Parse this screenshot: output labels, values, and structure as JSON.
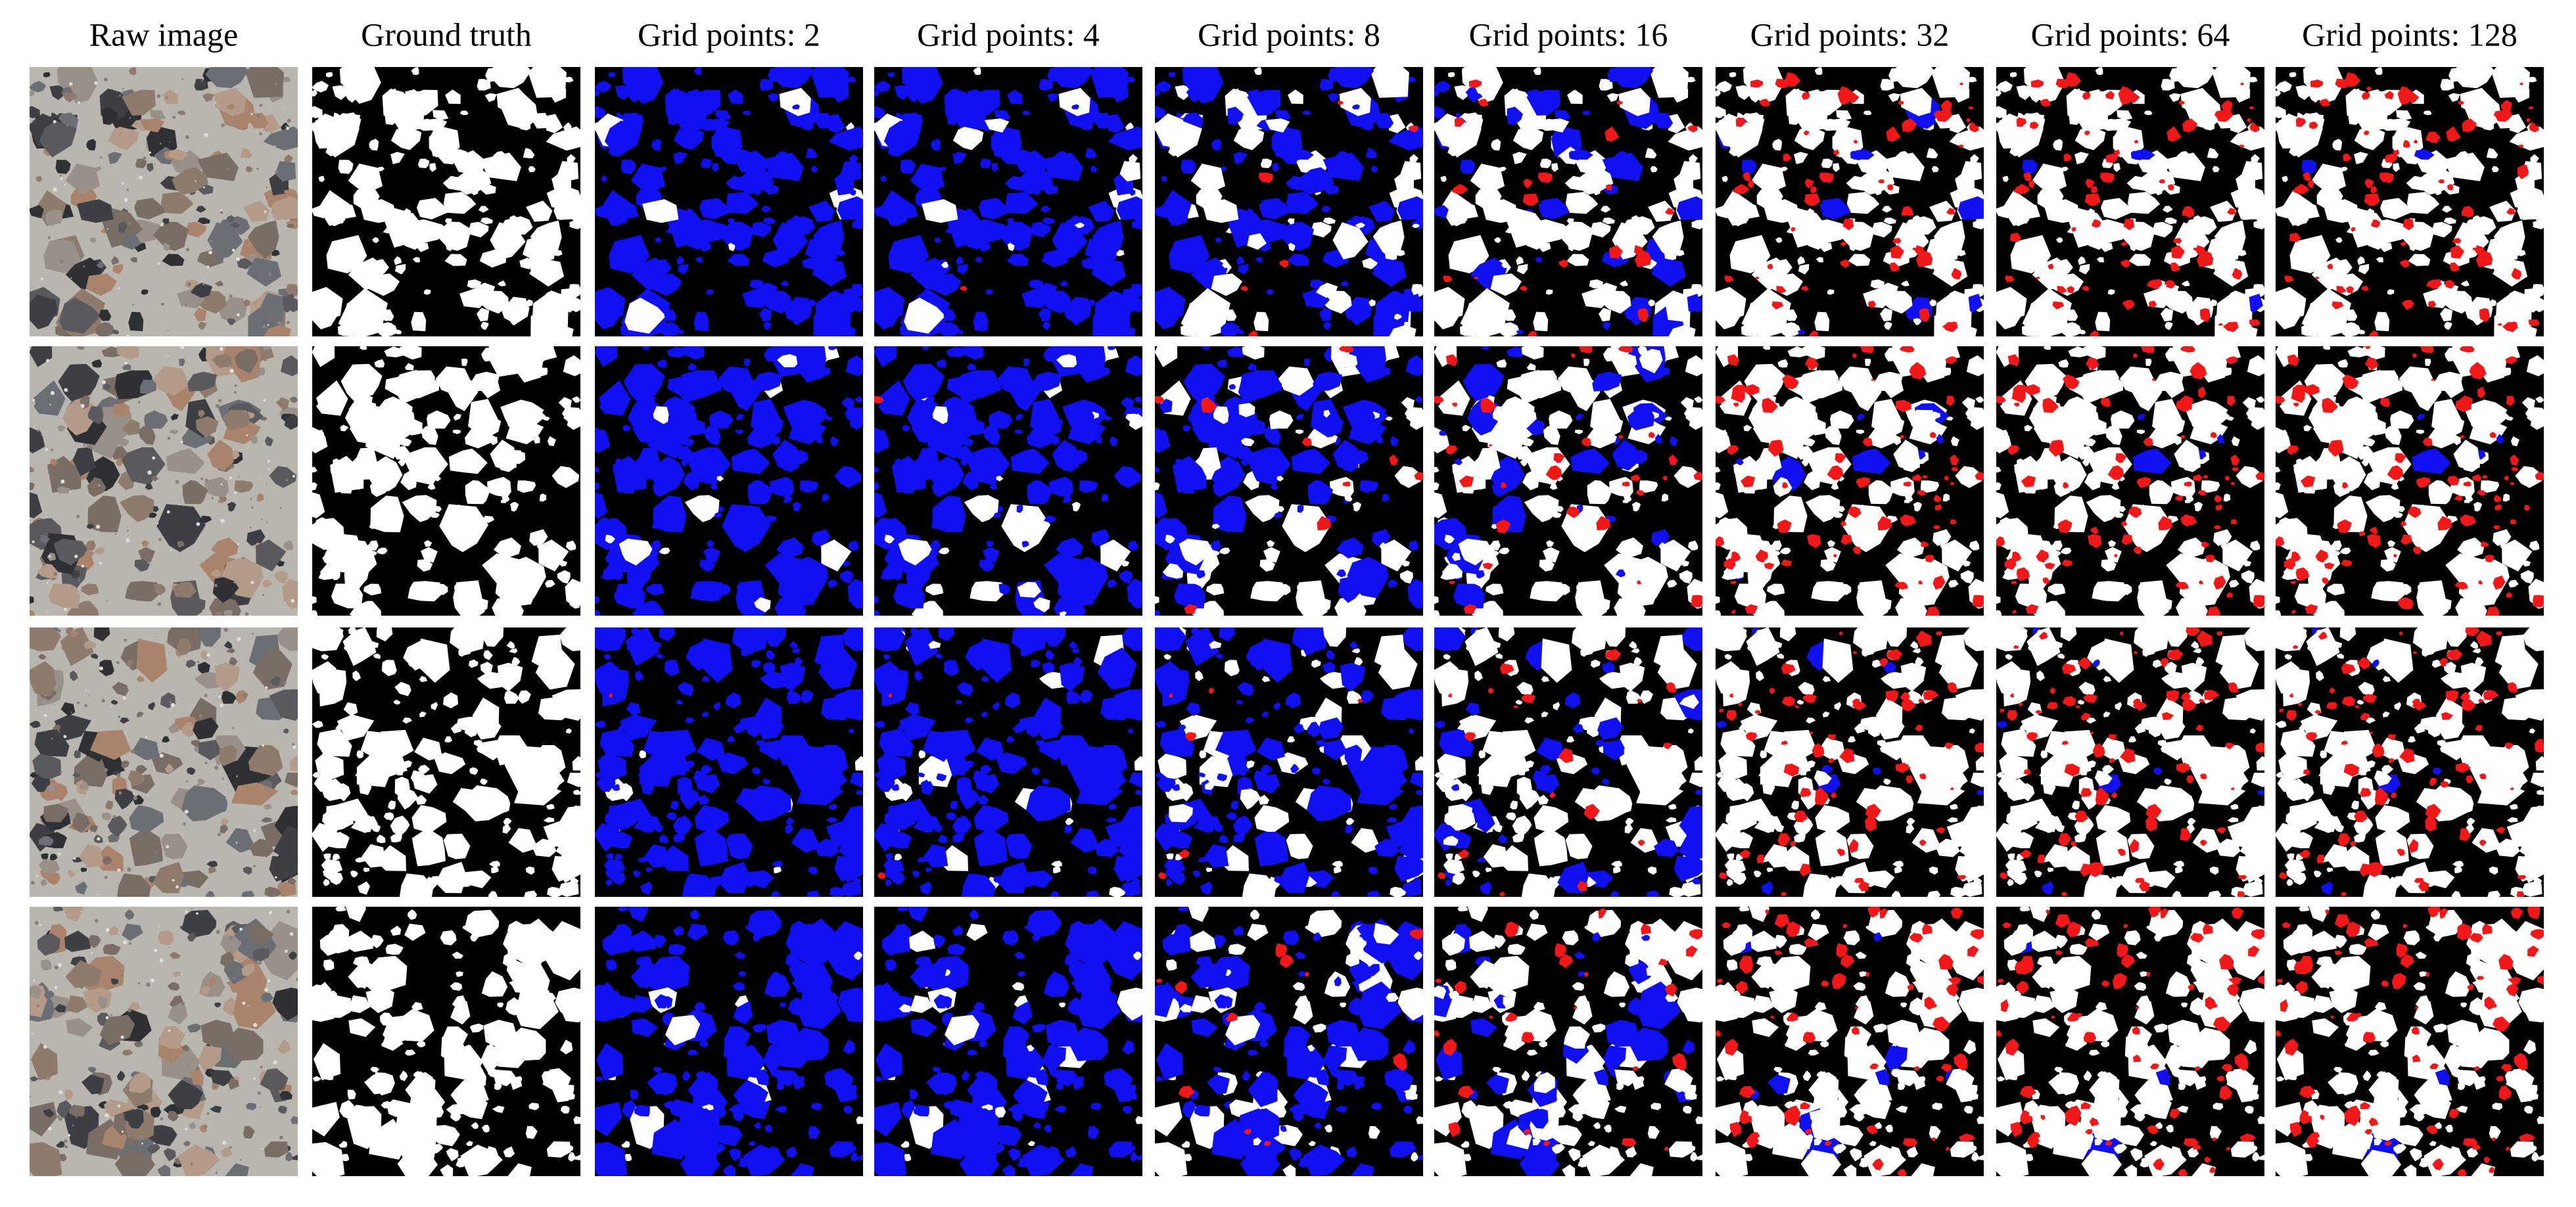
{
  "column_headers": [
    "Raw image",
    "Ground truth",
    "Grid points: 2",
    "Grid points: 4",
    "Grid points: 8",
    "Grid points: 16",
    "Grid points: 32",
    "Grid points: 64",
    "Grid points: 128"
  ]
}
